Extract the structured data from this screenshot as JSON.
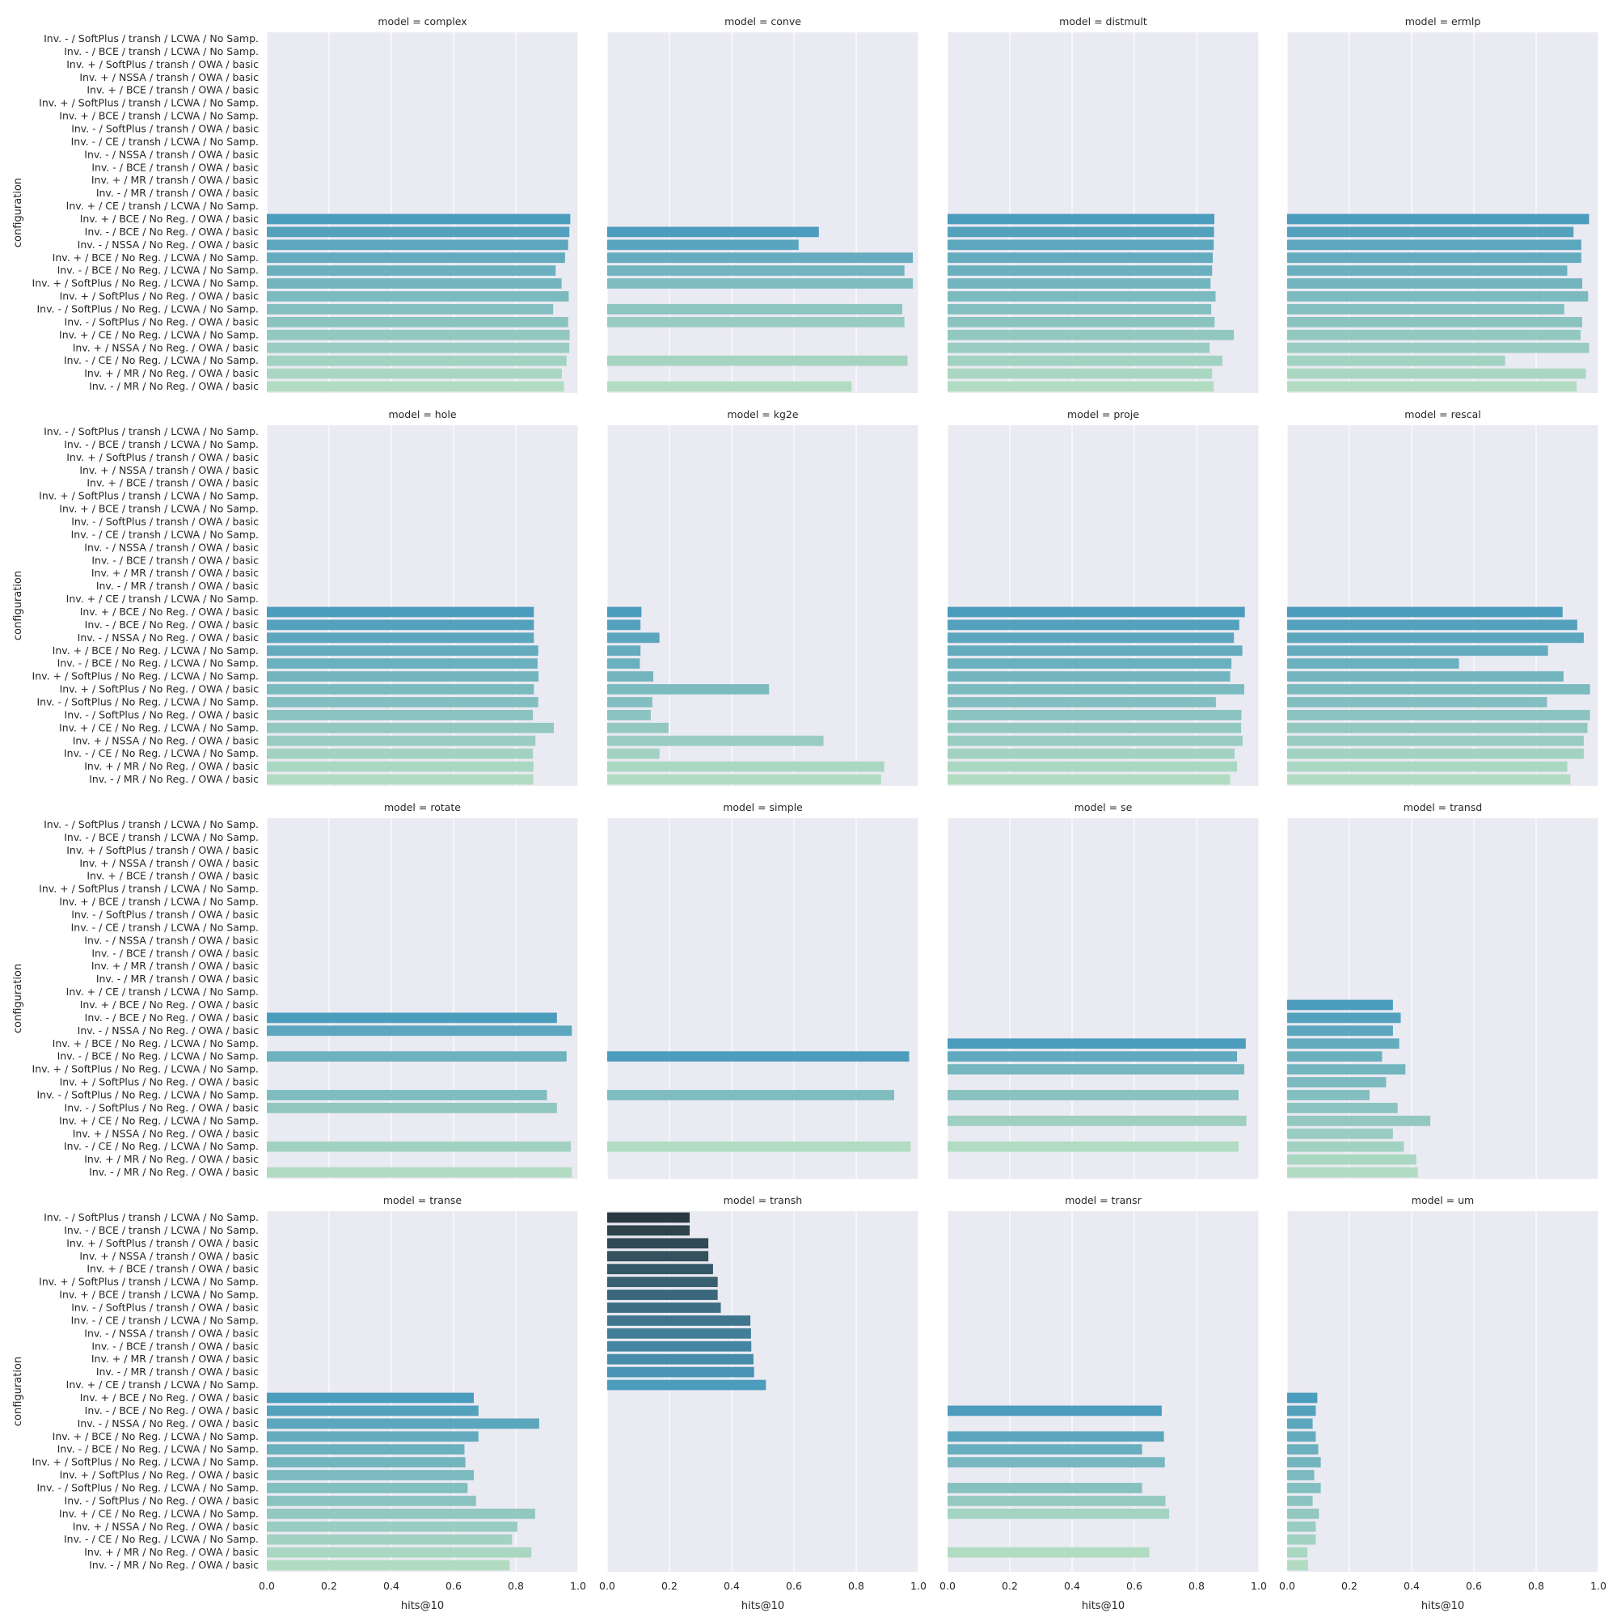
{
  "chart_data": {
    "type": "bar",
    "orientation": "horizontal",
    "layout": "facet grid 4x4",
    "xlabel": "hits@10",
    "ylabel": "configuration",
    "xlim": [
      0,
      1
    ],
    "xticks": [
      "0.0",
      "0.2",
      "0.4",
      "0.6",
      "0.8",
      "1.0"
    ],
    "grid": true,
    "background": "#eaeaf2",
    "palette_from": "#2b3a42",
    "palette_mid": "#4c9cbd",
    "palette_to": "#b2dcc2",
    "categories": [
      "Inv. - / SoftPlus / transh / LCWA / No Samp.",
      "Inv. - / BCE / transh / LCWA / No Samp.",
      "Inv. + / SoftPlus / transh / OWA / basic",
      "Inv. + / NSSA / transh / OWA / basic",
      "Inv. + / BCE / transh / OWA / basic",
      "Inv. + / SoftPlus / transh / LCWA / No Samp.",
      "Inv. + / BCE / transh / LCWA / No Samp.",
      "Inv. - / SoftPlus / transh / OWA / basic",
      "Inv. - / CE / transh / LCWA / No Samp.",
      "Inv. - / NSSA / transh / OWA / basic",
      "Inv. - / BCE / transh / OWA / basic",
      "Inv. + / MR / transh / OWA / basic",
      "Inv. - / MR / transh / OWA / basic",
      "Inv. + / CE / transh / LCWA / No Samp.",
      "Inv. + / BCE / No Reg. / OWA / basic",
      "Inv. - / BCE / No Reg. / OWA / basic",
      "Inv. - / NSSA / No Reg. / OWA / basic",
      "Inv. + / BCE / No Reg. / LCWA / No Samp.",
      "Inv. - / BCE / No Reg. / LCWA / No Samp.",
      "Inv. + / SoftPlus / No Reg. / LCWA / No Samp.",
      "Inv. + / SoftPlus / No Reg. / OWA / basic",
      "Inv. - / SoftPlus / No Reg. / LCWA / No Samp.",
      "Inv. - / SoftPlus / No Reg. / OWA / basic",
      "Inv. + / CE / No Reg. / LCWA / No Samp.",
      "Inv. + / NSSA / No Reg. / OWA / basic",
      "Inv. - / CE / No Reg. / LCWA / No Samp.",
      "Inv. + / MR / No Reg. / OWA / basic",
      "Inv. - / MR / No Reg. / OWA / basic"
    ],
    "panels": [
      {
        "title": "model = complex",
        "values": [
          null,
          null,
          null,
          null,
          null,
          null,
          null,
          null,
          null,
          null,
          null,
          null,
          null,
          null,
          0.975,
          0.972,
          0.968,
          0.958,
          0.928,
          0.947,
          0.97,
          0.92,
          0.968,
          0.973,
          0.972,
          0.963,
          0.948,
          0.955
        ]
      },
      {
        "title": "model = conve",
        "values": [
          null,
          null,
          null,
          null,
          null,
          null,
          null,
          null,
          null,
          null,
          null,
          null,
          null,
          null,
          null,
          0.68,
          0.615,
          0.982,
          0.955,
          0.982,
          null,
          0.948,
          0.955,
          null,
          null,
          0.965,
          null,
          0.785
        ]
      },
      {
        "title": "model = distmult",
        "values": [
          null,
          null,
          null,
          null,
          null,
          null,
          null,
          null,
          null,
          null,
          null,
          null,
          null,
          null,
          0.857,
          0.856,
          0.855,
          0.852,
          0.85,
          0.845,
          0.861,
          0.847,
          0.858,
          0.92,
          0.842,
          0.883,
          0.85,
          0.855
        ]
      },
      {
        "title": "model = ermlp",
        "values": [
          null,
          null,
          null,
          null,
          null,
          null,
          null,
          null,
          null,
          null,
          null,
          null,
          null,
          null,
          0.97,
          0.92,
          0.945,
          0.945,
          0.9,
          0.948,
          0.967,
          0.89,
          0.948,
          0.943,
          0.97,
          0.7,
          0.96,
          0.93
        ]
      },
      {
        "title": "model = hole",
        "values": [
          null,
          null,
          null,
          null,
          null,
          null,
          null,
          null,
          null,
          null,
          null,
          null,
          null,
          null,
          0.858,
          0.858,
          0.858,
          0.872,
          0.87,
          0.873,
          0.858,
          0.872,
          0.855,
          0.922,
          0.863,
          0.855,
          0.857,
          0.856
        ]
      },
      {
        "title": "model = kg2e",
        "values": [
          null,
          null,
          null,
          null,
          null,
          null,
          null,
          null,
          null,
          null,
          null,
          null,
          null,
          null,
          0.11,
          0.107,
          0.168,
          0.107,
          0.105,
          0.148,
          0.52,
          0.145,
          0.14,
          0.197,
          0.695,
          0.168,
          0.89,
          0.88
        ]
      },
      {
        "title": "model = proje",
        "values": [
          null,
          null,
          null,
          null,
          null,
          null,
          null,
          null,
          null,
          null,
          null,
          null,
          null,
          null,
          0.955,
          0.937,
          0.92,
          0.947,
          0.912,
          0.908,
          0.953,
          0.862,
          0.944,
          0.943,
          0.948,
          0.922,
          0.93,
          0.908
        ]
      },
      {
        "title": "model = rescal",
        "values": [
          null,
          null,
          null,
          null,
          null,
          null,
          null,
          null,
          null,
          null,
          null,
          null,
          null,
          null,
          0.885,
          0.932,
          0.953,
          0.838,
          0.552,
          0.888,
          0.973,
          0.835,
          0.973,
          0.965,
          0.953,
          0.953,
          0.9,
          0.91
        ]
      },
      {
        "title": "model = rotate",
        "values": [
          null,
          null,
          null,
          null,
          null,
          null,
          null,
          null,
          null,
          null,
          null,
          null,
          null,
          null,
          null,
          0.932,
          0.98,
          null,
          0.963,
          null,
          null,
          0.9,
          0.932,
          null,
          null,
          0.977,
          null,
          0.98
        ]
      },
      {
        "title": "model = simple",
        "values": [
          null,
          null,
          null,
          null,
          null,
          null,
          null,
          null,
          null,
          null,
          null,
          null,
          null,
          null,
          null,
          null,
          null,
          null,
          0.97,
          null,
          null,
          0.922,
          null,
          null,
          null,
          0.975,
          null,
          null
        ]
      },
      {
        "title": "model = se",
        "values": [
          null,
          null,
          null,
          null,
          null,
          null,
          null,
          null,
          null,
          null,
          null,
          null,
          null,
          null,
          null,
          null,
          null,
          0.958,
          0.93,
          0.953,
          null,
          0.935,
          null,
          0.96,
          null,
          0.935,
          null,
          null
        ]
      },
      {
        "title": "model = transd",
        "values": [
          null,
          null,
          null,
          null,
          null,
          null,
          null,
          null,
          null,
          null,
          null,
          null,
          null,
          null,
          0.34,
          0.365,
          0.34,
          0.36,
          0.305,
          0.38,
          0.318,
          0.265,
          0.355,
          0.46,
          0.34,
          0.375,
          0.415,
          0.42
        ]
      },
      {
        "title": "model = transe",
        "values": [
          null,
          null,
          null,
          null,
          null,
          null,
          null,
          null,
          null,
          null,
          null,
          null,
          null,
          null,
          0.665,
          0.68,
          0.875,
          0.68,
          0.635,
          0.638,
          0.665,
          0.645,
          0.672,
          0.862,
          0.805,
          0.788,
          0.85,
          0.78
        ]
      },
      {
        "title": "model = transh",
        "values": [
          0.265,
          0.265,
          0.325,
          0.325,
          0.34,
          0.355,
          0.355,
          0.365,
          0.46,
          0.462,
          0.463,
          0.47,
          0.472,
          0.51,
          null,
          null,
          null,
          null,
          null,
          null,
          null,
          null,
          null,
          null,
          null,
          null,
          null,
          null
        ]
      },
      {
        "title": "model = transr",
        "values": [
          null,
          null,
          null,
          null,
          null,
          null,
          null,
          null,
          null,
          null,
          null,
          null,
          null,
          null,
          null,
          0.688,
          null,
          0.695,
          0.625,
          0.698,
          null,
          0.625,
          0.7,
          0.712,
          null,
          null,
          0.648,
          null
        ]
      },
      {
        "title": "model = um",
        "values": [
          null,
          null,
          null,
          null,
          null,
          null,
          null,
          null,
          null,
          null,
          null,
          null,
          null,
          null,
          0.097,
          0.092,
          0.082,
          0.092,
          0.1,
          0.108,
          0.087,
          0.108,
          0.082,
          0.102,
          0.092,
          0.092,
          0.065,
          0.067
        ]
      }
    ]
  }
}
